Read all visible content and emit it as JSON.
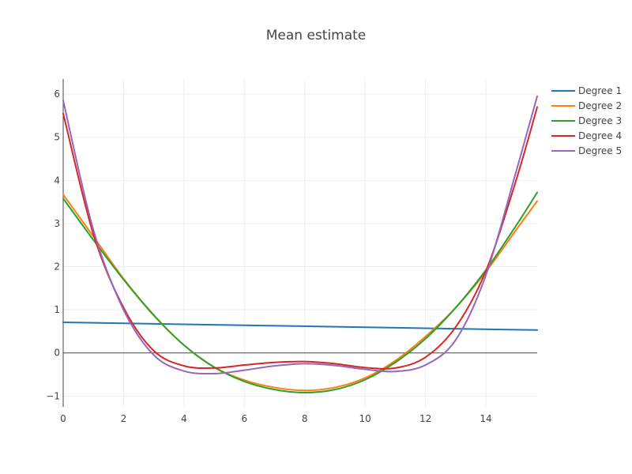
{
  "chart_data": {
    "type": "line",
    "title": "Mean estimate",
    "xlabel": "",
    "ylabel": "",
    "xlim": [
      0,
      15.7
    ],
    "ylim": [
      -1.25,
      6.35
    ],
    "x_ticks": [
      "0",
      "2",
      "4",
      "6",
      "8",
      "10",
      "12",
      "14"
    ],
    "y_ticks": [
      "−1",
      "0",
      "1",
      "2",
      "3",
      "4",
      "5",
      "6"
    ],
    "grid": true,
    "legend_position": "top-right",
    "series": [
      {
        "name": "Degree 1",
        "color": "#1f77b4",
        "x": [
          0,
          15.7
        ],
        "y": [
          0.71,
          0.53
        ]
      },
      {
        "name": "Degree 2",
        "color": "#ff7f0e",
        "x": [
          0,
          1,
          2,
          3,
          4,
          5,
          6,
          7,
          8,
          9,
          10,
          11,
          12,
          13,
          14,
          15,
          15.7
        ],
        "y": [
          3.67,
          2.7,
          1.72,
          0.88,
          0.18,
          -0.33,
          -0.63,
          -0.8,
          -0.87,
          -0.8,
          -0.58,
          -0.18,
          0.38,
          1.05,
          1.88,
          2.85,
          3.52
        ]
      },
      {
        "name": "Degree 3",
        "color": "#2ca02c",
        "x": [
          0,
          1,
          2,
          3,
          4,
          5,
          6,
          7,
          8,
          9,
          10,
          11,
          12,
          13,
          14,
          15,
          15.7
        ],
        "y": [
          3.58,
          2.62,
          1.7,
          0.87,
          0.18,
          -0.33,
          -0.66,
          -0.85,
          -0.92,
          -0.85,
          -0.62,
          -0.22,
          0.33,
          1.05,
          1.92,
          2.95,
          3.72
        ]
      },
      {
        "name": "Degree 4",
        "color": "#d62728",
        "x": [
          0,
          1,
          2,
          3,
          4,
          5,
          6,
          7,
          8,
          9,
          10,
          11,
          12,
          13,
          14,
          15,
          15.7
        ],
        "y": [
          5.55,
          2.75,
          1.05,
          0.05,
          -0.3,
          -0.35,
          -0.28,
          -0.22,
          -0.2,
          -0.25,
          -0.34,
          -0.35,
          -0.1,
          0.6,
          1.9,
          4.0,
          5.7
        ]
      },
      {
        "name": "Degree 5",
        "color": "#9467bd",
        "x": [
          0,
          1,
          2,
          3,
          4,
          5,
          6,
          7,
          8,
          9,
          10,
          11,
          12,
          13,
          14,
          15,
          15.7
        ],
        "y": [
          5.85,
          2.85,
          1.0,
          -0.05,
          -0.42,
          -0.48,
          -0.4,
          -0.3,
          -0.25,
          -0.29,
          -0.38,
          -0.43,
          -0.28,
          0.3,
          1.8,
          4.2,
          5.95
        ]
      }
    ]
  }
}
